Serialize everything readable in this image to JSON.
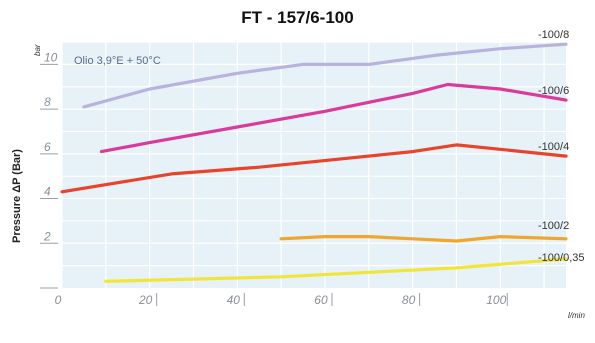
{
  "chart_data": {
    "type": "line",
    "title": "FT - 157/6-100",
    "ylabel": "Pressure ΔP (Bar)",
    "y_unit": "bar",
    "x_unit": "l/min",
    "annotation": "Olio 3,9°E + 50°C",
    "xlim": [
      0,
      115
    ],
    "ylim": [
      0,
      11
    ],
    "x_ticks": [
      0,
      20,
      40,
      60,
      80,
      100
    ],
    "y_ticks": [
      2,
      4,
      6,
      8,
      10
    ],
    "grid": true,
    "series": [
      {
        "name": "-100/8",
        "color": "#b7b3de",
        "x": [
          5,
          20,
          40,
          55,
          70,
          85,
          100,
          115
        ],
        "y": [
          8.1,
          8.9,
          9.6,
          10.0,
          10.0,
          10.4,
          10.7,
          10.9
        ]
      },
      {
        "name": "-100/6",
        "color": "#d93a9c",
        "x": [
          9,
          20,
          40,
          60,
          80,
          88,
          100,
          115
        ],
        "y": [
          6.1,
          6.5,
          7.2,
          7.9,
          8.7,
          9.1,
          8.9,
          8.4
        ]
      },
      {
        "name": "-100/4",
        "color": "#e8432b",
        "x": [
          0,
          25,
          45,
          65,
          80,
          90,
          100,
          115
        ],
        "y": [
          4.3,
          5.1,
          5.4,
          5.8,
          6.1,
          6.4,
          6.2,
          5.9
        ]
      },
      {
        "name": "-100/2",
        "color": "#f0a62a",
        "x": [
          50,
          60,
          70,
          80,
          90,
          100,
          115
        ],
        "y": [
          2.2,
          2.3,
          2.3,
          2.2,
          2.1,
          2.3,
          2.2
        ]
      },
      {
        "name": "-100/0,35",
        "color": "#f2e53a",
        "x": [
          10,
          30,
          50,
          70,
          90,
          115
        ],
        "y": [
          0.3,
          0.4,
          0.5,
          0.7,
          0.9,
          1.3
        ]
      }
    ]
  }
}
